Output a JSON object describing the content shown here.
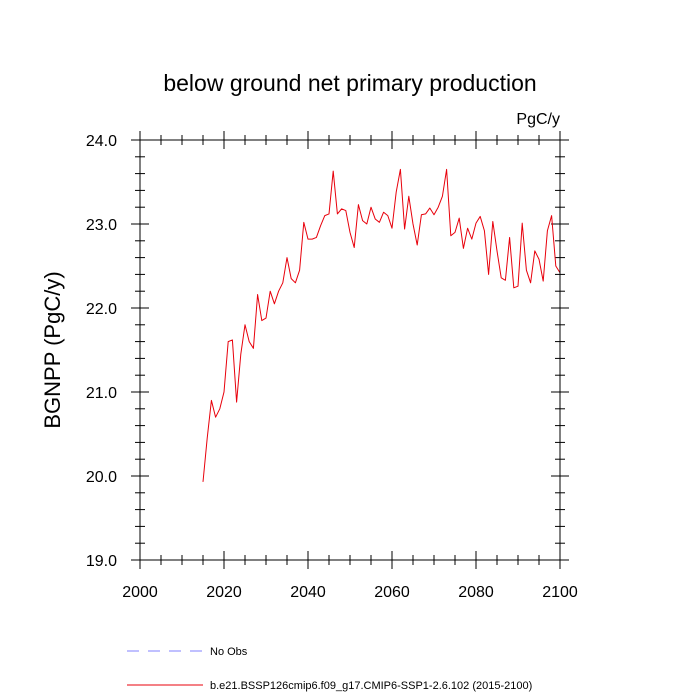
{
  "chart_data": {
    "type": "line",
    "title": "below ground net primary production",
    "units_label": "PgC/y",
    "ylabel": "BGNPP  (PgC/y)",
    "xlabel": "",
    "xlim": [
      2000,
      2100
    ],
    "ylim": [
      19.0,
      24.0
    ],
    "x_ticks": [
      2000,
      2020,
      2040,
      2060,
      2080,
      2100
    ],
    "x_tick_labels": [
      "2000",
      "2020",
      "2040",
      "2060",
      "2080",
      "2100"
    ],
    "y_ticks": [
      19.0,
      20.0,
      21.0,
      22.0,
      23.0,
      24.0
    ],
    "y_tick_labels": [
      "19.0",
      "20.0",
      "21.0",
      "22.0",
      "23.0",
      "24.0"
    ],
    "series": [
      {
        "name": "b.e21.BSSP126cmip6.f09_g17.CMIP6-SSP1-2.6.102 (2015-2100)",
        "color": "#e8000b",
        "x": [
          2015,
          2016,
          2017,
          2018,
          2019,
          2020,
          2021,
          2022,
          2023,
          2024,
          2025,
          2026,
          2027,
          2028,
          2029,
          2030,
          2031,
          2032,
          2033,
          2034,
          2035,
          2036,
          2037,
          2038,
          2039,
          2040,
          2041,
          2042,
          2043,
          2044,
          2045,
          2046,
          2047,
          2048,
          2049,
          2050,
          2051,
          2052,
          2053,
          2054,
          2055,
          2056,
          2057,
          2058,
          2059,
          2060,
          2061,
          2062,
          2063,
          2064,
          2065,
          2066,
          2067,
          2068,
          2069,
          2070,
          2071,
          2072,
          2073,
          2074,
          2075,
          2076,
          2077,
          2078,
          2079,
          2080,
          2081,
          2082,
          2083,
          2084,
          2085,
          2086,
          2087,
          2088,
          2089,
          2090,
          2091,
          2092,
          2093,
          2094,
          2095,
          2096,
          2097,
          2098,
          2099,
          2100
        ],
        "values": [
          19.93,
          20.45,
          20.9,
          20.7,
          20.8,
          21.0,
          21.6,
          21.62,
          20.88,
          21.45,
          21.8,
          21.6,
          21.52,
          22.16,
          21.85,
          21.88,
          22.2,
          22.05,
          22.2,
          22.3,
          22.6,
          22.35,
          22.3,
          22.45,
          23.02,
          22.82,
          22.82,
          22.84,
          22.98,
          23.1,
          23.12,
          23.63,
          23.12,
          23.18,
          23.16,
          22.9,
          22.72,
          23.23,
          23.04,
          23.0,
          23.2,
          23.06,
          23.02,
          23.14,
          23.1,
          22.95,
          23.38,
          23.65,
          22.94,
          23.33,
          23.0,
          22.75,
          23.11,
          23.12,
          23.19,
          23.11,
          23.2,
          23.33,
          23.65,
          22.86,
          22.9,
          23.07,
          22.71,
          22.95,
          22.82,
          23.01,
          23.09,
          22.92,
          22.4,
          23.03,
          22.68,
          22.36,
          22.33,
          22.84,
          22.24,
          22.26,
          23.01,
          22.45,
          22.3,
          22.68,
          22.58,
          22.32,
          22.92,
          23.1,
          22.5,
          22.42
        ]
      },
      {
        "name": "No Obs",
        "color": "#8080ff",
        "values": []
      }
    ],
    "legend": {
      "position": "bottom",
      "entries": [
        {
          "label": "No Obs",
          "color": "#8080ff",
          "style": "dashed"
        },
        {
          "label": "b.e21.BSSP126cmip6.f09_g17.CMIP6-SSP1-2.6.102 (2015-2100)",
          "color": "#e8000b",
          "style": "solid"
        }
      ]
    },
    "grid": false
  }
}
